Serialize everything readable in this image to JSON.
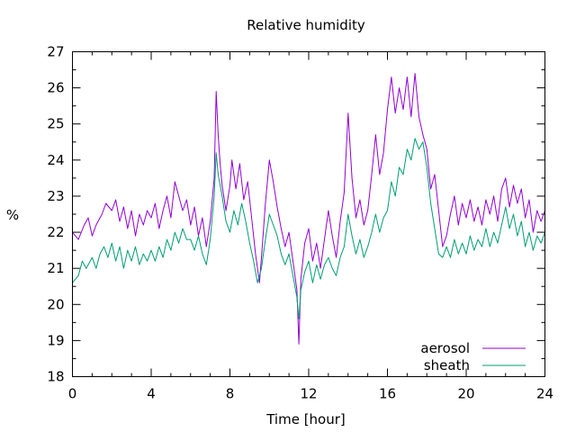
{
  "chart_data": {
    "type": "line",
    "title": "Relative humidity",
    "xlabel": "Time [hour]",
    "ylabel": "%",
    "xlim": [
      0,
      24
    ],
    "ylim": [
      18,
      27
    ],
    "xticks": [
      0,
      4,
      8,
      12,
      16,
      20,
      24
    ],
    "yticks": [
      18,
      19,
      20,
      21,
      22,
      23,
      24,
      25,
      26,
      27
    ],
    "grid": false,
    "legend": "bottom-right",
    "series": [
      {
        "name": "aerosol",
        "color": "#9400d3",
        "points": [
          [
            0,
            22.0
          ],
          [
            0.3,
            21.8
          ],
          [
            0.6,
            22.2
          ],
          [
            0.8,
            22.4
          ],
          [
            1.0,
            21.9
          ],
          [
            1.2,
            22.2
          ],
          [
            1.5,
            22.5
          ],
          [
            1.7,
            22.8
          ],
          [
            2.0,
            22.6
          ],
          [
            2.2,
            22.9
          ],
          [
            2.4,
            22.3
          ],
          [
            2.6,
            22.7
          ],
          [
            2.8,
            22.1
          ],
          [
            3.0,
            22.6
          ],
          [
            3.2,
            21.9
          ],
          [
            3.4,
            22.5
          ],
          [
            3.6,
            22.2
          ],
          [
            3.8,
            22.6
          ],
          [
            4.0,
            22.4
          ],
          [
            4.2,
            22.8
          ],
          [
            4.4,
            22.1
          ],
          [
            4.6,
            22.6
          ],
          [
            4.8,
            23.0
          ],
          [
            5.0,
            22.4
          ],
          [
            5.2,
            23.4
          ],
          [
            5.4,
            23.0
          ],
          [
            5.6,
            22.6
          ],
          [
            5.8,
            22.9
          ],
          [
            6.0,
            22.2
          ],
          [
            6.2,
            22.7
          ],
          [
            6.4,
            21.9
          ],
          [
            6.6,
            22.4
          ],
          [
            6.8,
            21.6
          ],
          [
            7.0,
            22.3
          ],
          [
            7.2,
            23.5
          ],
          [
            7.3,
            25.9
          ],
          [
            7.4,
            24.7
          ],
          [
            7.5,
            23.9
          ],
          [
            7.6,
            23.3
          ],
          [
            7.8,
            22.6
          ],
          [
            8.0,
            23.3
          ],
          [
            8.1,
            24.0
          ],
          [
            8.3,
            23.2
          ],
          [
            8.5,
            23.9
          ],
          [
            8.7,
            22.9
          ],
          [
            8.9,
            23.4
          ],
          [
            9.1,
            22.4
          ],
          [
            9.3,
            21.4
          ],
          [
            9.5,
            20.6
          ],
          [
            9.6,
            21.3
          ],
          [
            9.8,
            22.8
          ],
          [
            10.0,
            24.0
          ],
          [
            10.2,
            23.4
          ],
          [
            10.4,
            22.7
          ],
          [
            10.6,
            22.1
          ],
          [
            10.8,
            21.6
          ],
          [
            11.0,
            22.0
          ],
          [
            11.2,
            21.2
          ],
          [
            11.4,
            20.4
          ],
          [
            11.5,
            18.9
          ],
          [
            11.6,
            20.7
          ],
          [
            11.8,
            21.7
          ],
          [
            12.0,
            22.1
          ],
          [
            12.2,
            21.2
          ],
          [
            12.4,
            21.7
          ],
          [
            12.6,
            21.0
          ],
          [
            12.8,
            21.8
          ],
          [
            13.0,
            22.6
          ],
          [
            13.2,
            21.9
          ],
          [
            13.4,
            21.3
          ],
          [
            13.6,
            22.3
          ],
          [
            13.8,
            23.1
          ],
          [
            14.0,
            25.3
          ],
          [
            14.2,
            23.5
          ],
          [
            14.4,
            22.4
          ],
          [
            14.6,
            22.9
          ],
          [
            14.8,
            22.2
          ],
          [
            15.0,
            22.6
          ],
          [
            15.2,
            23.6
          ],
          [
            15.4,
            24.7
          ],
          [
            15.6,
            23.6
          ],
          [
            15.8,
            24.2
          ],
          [
            16.0,
            25.4
          ],
          [
            16.2,
            26.3
          ],
          [
            16.4,
            25.3
          ],
          [
            16.6,
            26.0
          ],
          [
            16.8,
            25.4
          ],
          [
            17.0,
            26.3
          ],
          [
            17.2,
            25.2
          ],
          [
            17.4,
            26.4
          ],
          [
            17.6,
            25.2
          ],
          [
            17.8,
            24.7
          ],
          [
            18.0,
            24.3
          ],
          [
            18.2,
            23.2
          ],
          [
            18.4,
            23.6
          ],
          [
            18.6,
            22.6
          ],
          [
            18.8,
            21.6
          ],
          [
            19.0,
            21.9
          ],
          [
            19.2,
            22.5
          ],
          [
            19.4,
            23.0
          ],
          [
            19.6,
            22.2
          ],
          [
            19.8,
            22.8
          ],
          [
            20.0,
            22.4
          ],
          [
            20.2,
            22.9
          ],
          [
            20.4,
            22.3
          ],
          [
            20.6,
            22.7
          ],
          [
            20.8,
            22.2
          ],
          [
            21.0,
            22.9
          ],
          [
            21.2,
            22.5
          ],
          [
            21.4,
            23.0
          ],
          [
            21.6,
            22.3
          ],
          [
            21.8,
            23.2
          ],
          [
            22.0,
            23.5
          ],
          [
            22.2,
            22.7
          ],
          [
            22.4,
            23.3
          ],
          [
            22.6,
            22.8
          ],
          [
            22.8,
            23.2
          ],
          [
            23.0,
            22.4
          ],
          [
            23.2,
            22.9
          ],
          [
            23.4,
            22.0
          ],
          [
            23.6,
            22.6
          ],
          [
            23.8,
            22.3
          ],
          [
            24.0,
            22.6
          ]
        ]
      },
      {
        "name": "sheath",
        "color": "#009e73",
        "points": [
          [
            0,
            20.6
          ],
          [
            0.3,
            20.8
          ],
          [
            0.5,
            21.2
          ],
          [
            0.7,
            21.0
          ],
          [
            1.0,
            21.3
          ],
          [
            1.2,
            21.0
          ],
          [
            1.4,
            21.4
          ],
          [
            1.6,
            21.6
          ],
          [
            1.8,
            21.3
          ],
          [
            2.0,
            21.7
          ],
          [
            2.2,
            21.2
          ],
          [
            2.4,
            21.6
          ],
          [
            2.6,
            21.0
          ],
          [
            2.8,
            21.5
          ],
          [
            3.0,
            21.2
          ],
          [
            3.2,
            21.6
          ],
          [
            3.4,
            21.1
          ],
          [
            3.6,
            21.4
          ],
          [
            3.8,
            21.2
          ],
          [
            4.0,
            21.5
          ],
          [
            4.2,
            21.2
          ],
          [
            4.4,
            21.6
          ],
          [
            4.6,
            21.3
          ],
          [
            4.8,
            21.8
          ],
          [
            5.0,
            21.5
          ],
          [
            5.2,
            22.0
          ],
          [
            5.4,
            21.7
          ],
          [
            5.6,
            22.1
          ],
          [
            5.8,
            21.8
          ],
          [
            6.0,
            21.8
          ],
          [
            6.2,
            21.5
          ],
          [
            6.4,
            21.9
          ],
          [
            6.6,
            21.4
          ],
          [
            6.8,
            21.1
          ],
          [
            7.0,
            21.8
          ],
          [
            7.2,
            23.0
          ],
          [
            7.3,
            24.2
          ],
          [
            7.4,
            23.6
          ],
          [
            7.6,
            23.0
          ],
          [
            7.8,
            22.3
          ],
          [
            8.0,
            22.0
          ],
          [
            8.2,
            22.6
          ],
          [
            8.4,
            22.2
          ],
          [
            8.6,
            22.8
          ],
          [
            8.8,
            22.3
          ],
          [
            9.0,
            21.7
          ],
          [
            9.2,
            21.2
          ],
          [
            9.4,
            20.6
          ],
          [
            9.6,
            21.0
          ],
          [
            9.8,
            21.8
          ],
          [
            10.0,
            22.5
          ],
          [
            10.2,
            22.2
          ],
          [
            10.4,
            21.9
          ],
          [
            10.6,
            21.4
          ],
          [
            10.8,
            21.1
          ],
          [
            11.0,
            21.4
          ],
          [
            11.2,
            20.8
          ],
          [
            11.4,
            20.2
          ],
          [
            11.5,
            19.6
          ],
          [
            11.6,
            20.4
          ],
          [
            11.8,
            20.9
          ],
          [
            12.0,
            21.2
          ],
          [
            12.2,
            20.6
          ],
          [
            12.4,
            21.1
          ],
          [
            12.6,
            20.7
          ],
          [
            12.8,
            21.1
          ],
          [
            13.0,
            21.3
          ],
          [
            13.2,
            21.0
          ],
          [
            13.4,
            20.8
          ],
          [
            13.6,
            21.3
          ],
          [
            13.8,
            21.6
          ],
          [
            14.0,
            22.5
          ],
          [
            14.2,
            21.9
          ],
          [
            14.4,
            21.4
          ],
          [
            14.6,
            21.8
          ],
          [
            14.8,
            21.3
          ],
          [
            15.0,
            21.6
          ],
          [
            15.2,
            22.0
          ],
          [
            15.4,
            22.5
          ],
          [
            15.6,
            22.0
          ],
          [
            15.8,
            22.4
          ],
          [
            16.0,
            22.6
          ],
          [
            16.2,
            23.4
          ],
          [
            16.4,
            23.0
          ],
          [
            16.6,
            23.8
          ],
          [
            16.8,
            23.6
          ],
          [
            17.0,
            24.3
          ],
          [
            17.2,
            24.0
          ],
          [
            17.4,
            24.6
          ],
          [
            17.6,
            24.3
          ],
          [
            17.8,
            24.5
          ],
          [
            18.0,
            23.8
          ],
          [
            18.2,
            22.8
          ],
          [
            18.4,
            22.1
          ],
          [
            18.6,
            21.4
          ],
          [
            18.8,
            21.3
          ],
          [
            19.0,
            21.6
          ],
          [
            19.2,
            21.3
          ],
          [
            19.4,
            21.8
          ],
          [
            19.6,
            21.4
          ],
          [
            19.8,
            21.7
          ],
          [
            20.0,
            21.4
          ],
          [
            20.2,
            21.9
          ],
          [
            20.4,
            21.5
          ],
          [
            20.6,
            21.8
          ],
          [
            20.8,
            21.6
          ],
          [
            21.0,
            22.1
          ],
          [
            21.2,
            21.6
          ],
          [
            21.4,
            22.0
          ],
          [
            21.6,
            21.7
          ],
          [
            21.8,
            22.2
          ],
          [
            22.0,
            22.7
          ],
          [
            22.2,
            22.1
          ],
          [
            22.4,
            22.5
          ],
          [
            22.6,
            21.9
          ],
          [
            22.8,
            22.3
          ],
          [
            23.0,
            21.6
          ],
          [
            23.2,
            22.0
          ],
          [
            23.4,
            21.5
          ],
          [
            23.6,
            21.9
          ],
          [
            23.8,
            21.7
          ],
          [
            24.0,
            22.0
          ]
        ]
      }
    ]
  }
}
